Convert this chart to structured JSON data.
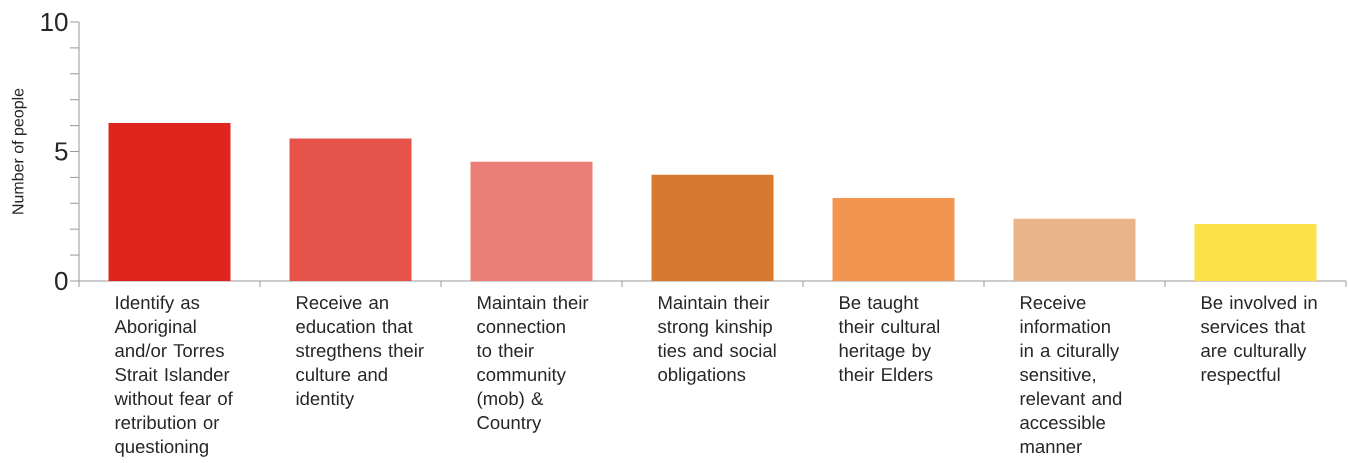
{
  "chart_data": {
    "type": "bar",
    "ylabel": "Number of people",
    "categories": [
      "Identify as Aboriginal and/or Torres Strait Islander without fear of retribution or questioning",
      "Receive an education that stregthens their culture and identity",
      "Maintain their connection to their community (mob) & Country",
      "Maintain their strong kinship ties and social obligations",
      "Be taught their cultural heritage by their Elders",
      "Receive information in a citurally sensitive, relevant and accessible manner",
      "Be involved in services that are culturally respectful"
    ],
    "values": [
      6.1,
      5.5,
      4.6,
      4.1,
      3.2,
      2.4,
      2.2
    ],
    "colors": [
      "#df261e",
      "#e5534b",
      "#ea7d76",
      "#d87930",
      "#f19550",
      "#e9b489",
      "#fde148"
    ],
    "ylim": [
      0,
      10
    ],
    "yticks": [
      0,
      {
        "value": 1,
        "label": null
      },
      {
        "value": 2,
        "label": null
      },
      {
        "value": 3,
        "label": null
      },
      {
        "value": 4,
        "label": null
      },
      5,
      {
        "value": 6,
        "label": null
      },
      {
        "value": 7,
        "label": null
      },
      {
        "value": 8,
        "label": null
      },
      {
        "value": 9,
        "label": null
      },
      10
    ],
    "grid": false
  }
}
